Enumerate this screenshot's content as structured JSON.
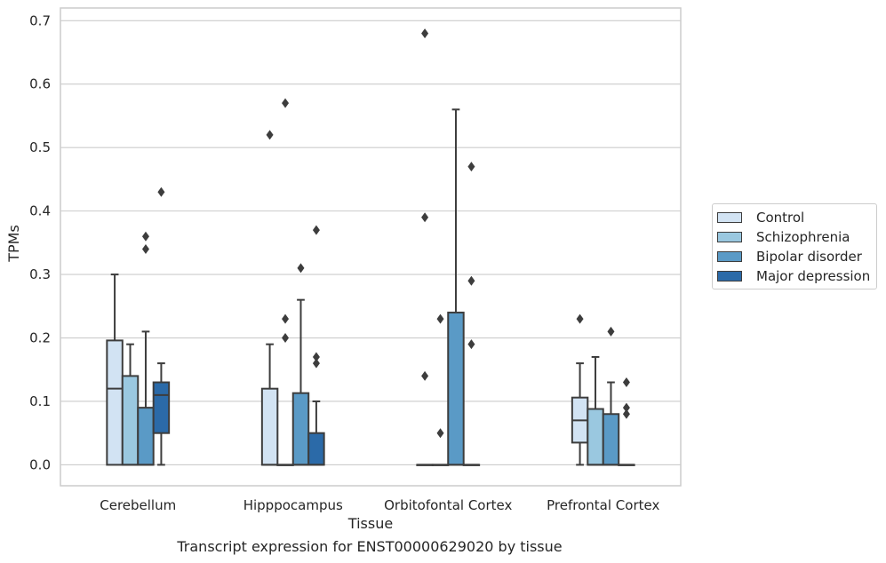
{
  "caption": "Transcript expression for ENST00000629020 by tissue",
  "chart_data": {
    "type": "box",
    "title": "",
    "xlabel": "Tissue",
    "ylabel": "TPMs",
    "ylim": [
      -0.033,
      0.72
    ],
    "yticks": [
      "0.0",
      "0.1",
      "0.2",
      "0.3",
      "0.4",
      "0.5",
      "0.6",
      "0.7"
    ],
    "ytick_values": [
      0.0,
      0.1,
      0.2,
      0.3,
      0.4,
      0.5,
      0.6,
      0.7
    ],
    "grid": true,
    "legend_position": "right",
    "categories": [
      "Cerebellum",
      "Hipppocampus",
      "Orbitofontal Cortex",
      "Prefrontal Cortex"
    ],
    "series": [
      {
        "name": "Control",
        "color": "#d2e3f3",
        "boxes": [
          {
            "q1": 0.0,
            "median": 0.12,
            "q3": 0.196,
            "whisker_low": 0.0,
            "whisker_high": 0.3,
            "outliers": []
          },
          {
            "q1": 0.0,
            "median": 0.0,
            "q3": 0.12,
            "whisker_low": 0.0,
            "whisker_high": 0.19,
            "outliers": [
              0.52
            ]
          },
          {
            "q1": 0.0,
            "median": 0.0,
            "q3": 0.0,
            "whisker_low": 0.0,
            "whisker_high": 0.0,
            "outliers": [
              0.68,
              0.39,
              0.14
            ]
          },
          {
            "q1": 0.035,
            "median": 0.07,
            "q3": 0.106,
            "whisker_low": 0.0,
            "whisker_high": 0.16,
            "outliers": [
              0.23
            ]
          }
        ]
      },
      {
        "name": "Schizophrenia",
        "color": "#9ac8e0",
        "boxes": [
          {
            "q1": 0.0,
            "median": 0.0,
            "q3": 0.14,
            "whisker_low": 0.0,
            "whisker_high": 0.19,
            "outliers": []
          },
          {
            "q1": 0.0,
            "median": 0.0,
            "q3": 0.0,
            "whisker_low": 0.0,
            "whisker_high": 0.0,
            "outliers": [
              0.57,
              0.23,
              0.2
            ]
          },
          {
            "q1": 0.0,
            "median": 0.0,
            "q3": 0.0,
            "whisker_low": 0.0,
            "whisker_high": 0.0,
            "outliers": [
              0.23,
              0.05
            ]
          },
          {
            "q1": 0.0,
            "median": 0.0,
            "q3": 0.088,
            "whisker_low": 0.0,
            "whisker_high": 0.17,
            "outliers": []
          }
        ]
      },
      {
        "name": "Bipolar disorder",
        "color": "#5a9ac6",
        "boxes": [
          {
            "q1": 0.0,
            "median": 0.0,
            "q3": 0.09,
            "whisker_low": 0.0,
            "whisker_high": 0.21,
            "outliers": [
              0.36,
              0.34
            ]
          },
          {
            "q1": 0.0,
            "median": 0.0,
            "q3": 0.113,
            "whisker_low": 0.0,
            "whisker_high": 0.26,
            "outliers": [
              0.31
            ]
          },
          {
            "q1": 0.0,
            "median": 0.0,
            "q3": 0.24,
            "whisker_low": 0.0,
            "whisker_high": 0.56,
            "outliers": []
          },
          {
            "q1": 0.0,
            "median": 0.0,
            "q3": 0.08,
            "whisker_low": 0.0,
            "whisker_high": 0.13,
            "outliers": [
              0.21
            ]
          }
        ]
      },
      {
        "name": "Major depression",
        "color": "#2b6aa8",
        "boxes": [
          {
            "q1": 0.05,
            "median": 0.11,
            "q3": 0.13,
            "whisker_low": 0.0,
            "whisker_high": 0.16,
            "outliers": [
              0.43
            ]
          },
          {
            "q1": 0.0,
            "median": 0.0,
            "q3": 0.05,
            "whisker_low": 0.0,
            "whisker_high": 0.1,
            "outliers": [
              0.37,
              0.17,
              0.16
            ]
          },
          {
            "q1": 0.0,
            "median": 0.0,
            "q3": 0.0,
            "whisker_low": 0.0,
            "whisker_high": 0.0,
            "outliers": [
              0.47,
              0.29,
              0.19
            ]
          },
          {
            "q1": 0.0,
            "median": 0.0,
            "q3": 0.0,
            "whisker_low": 0.0,
            "whisker_high": 0.0,
            "outliers": [
              0.13,
              0.09,
              0.08
            ]
          }
        ]
      }
    ]
  }
}
